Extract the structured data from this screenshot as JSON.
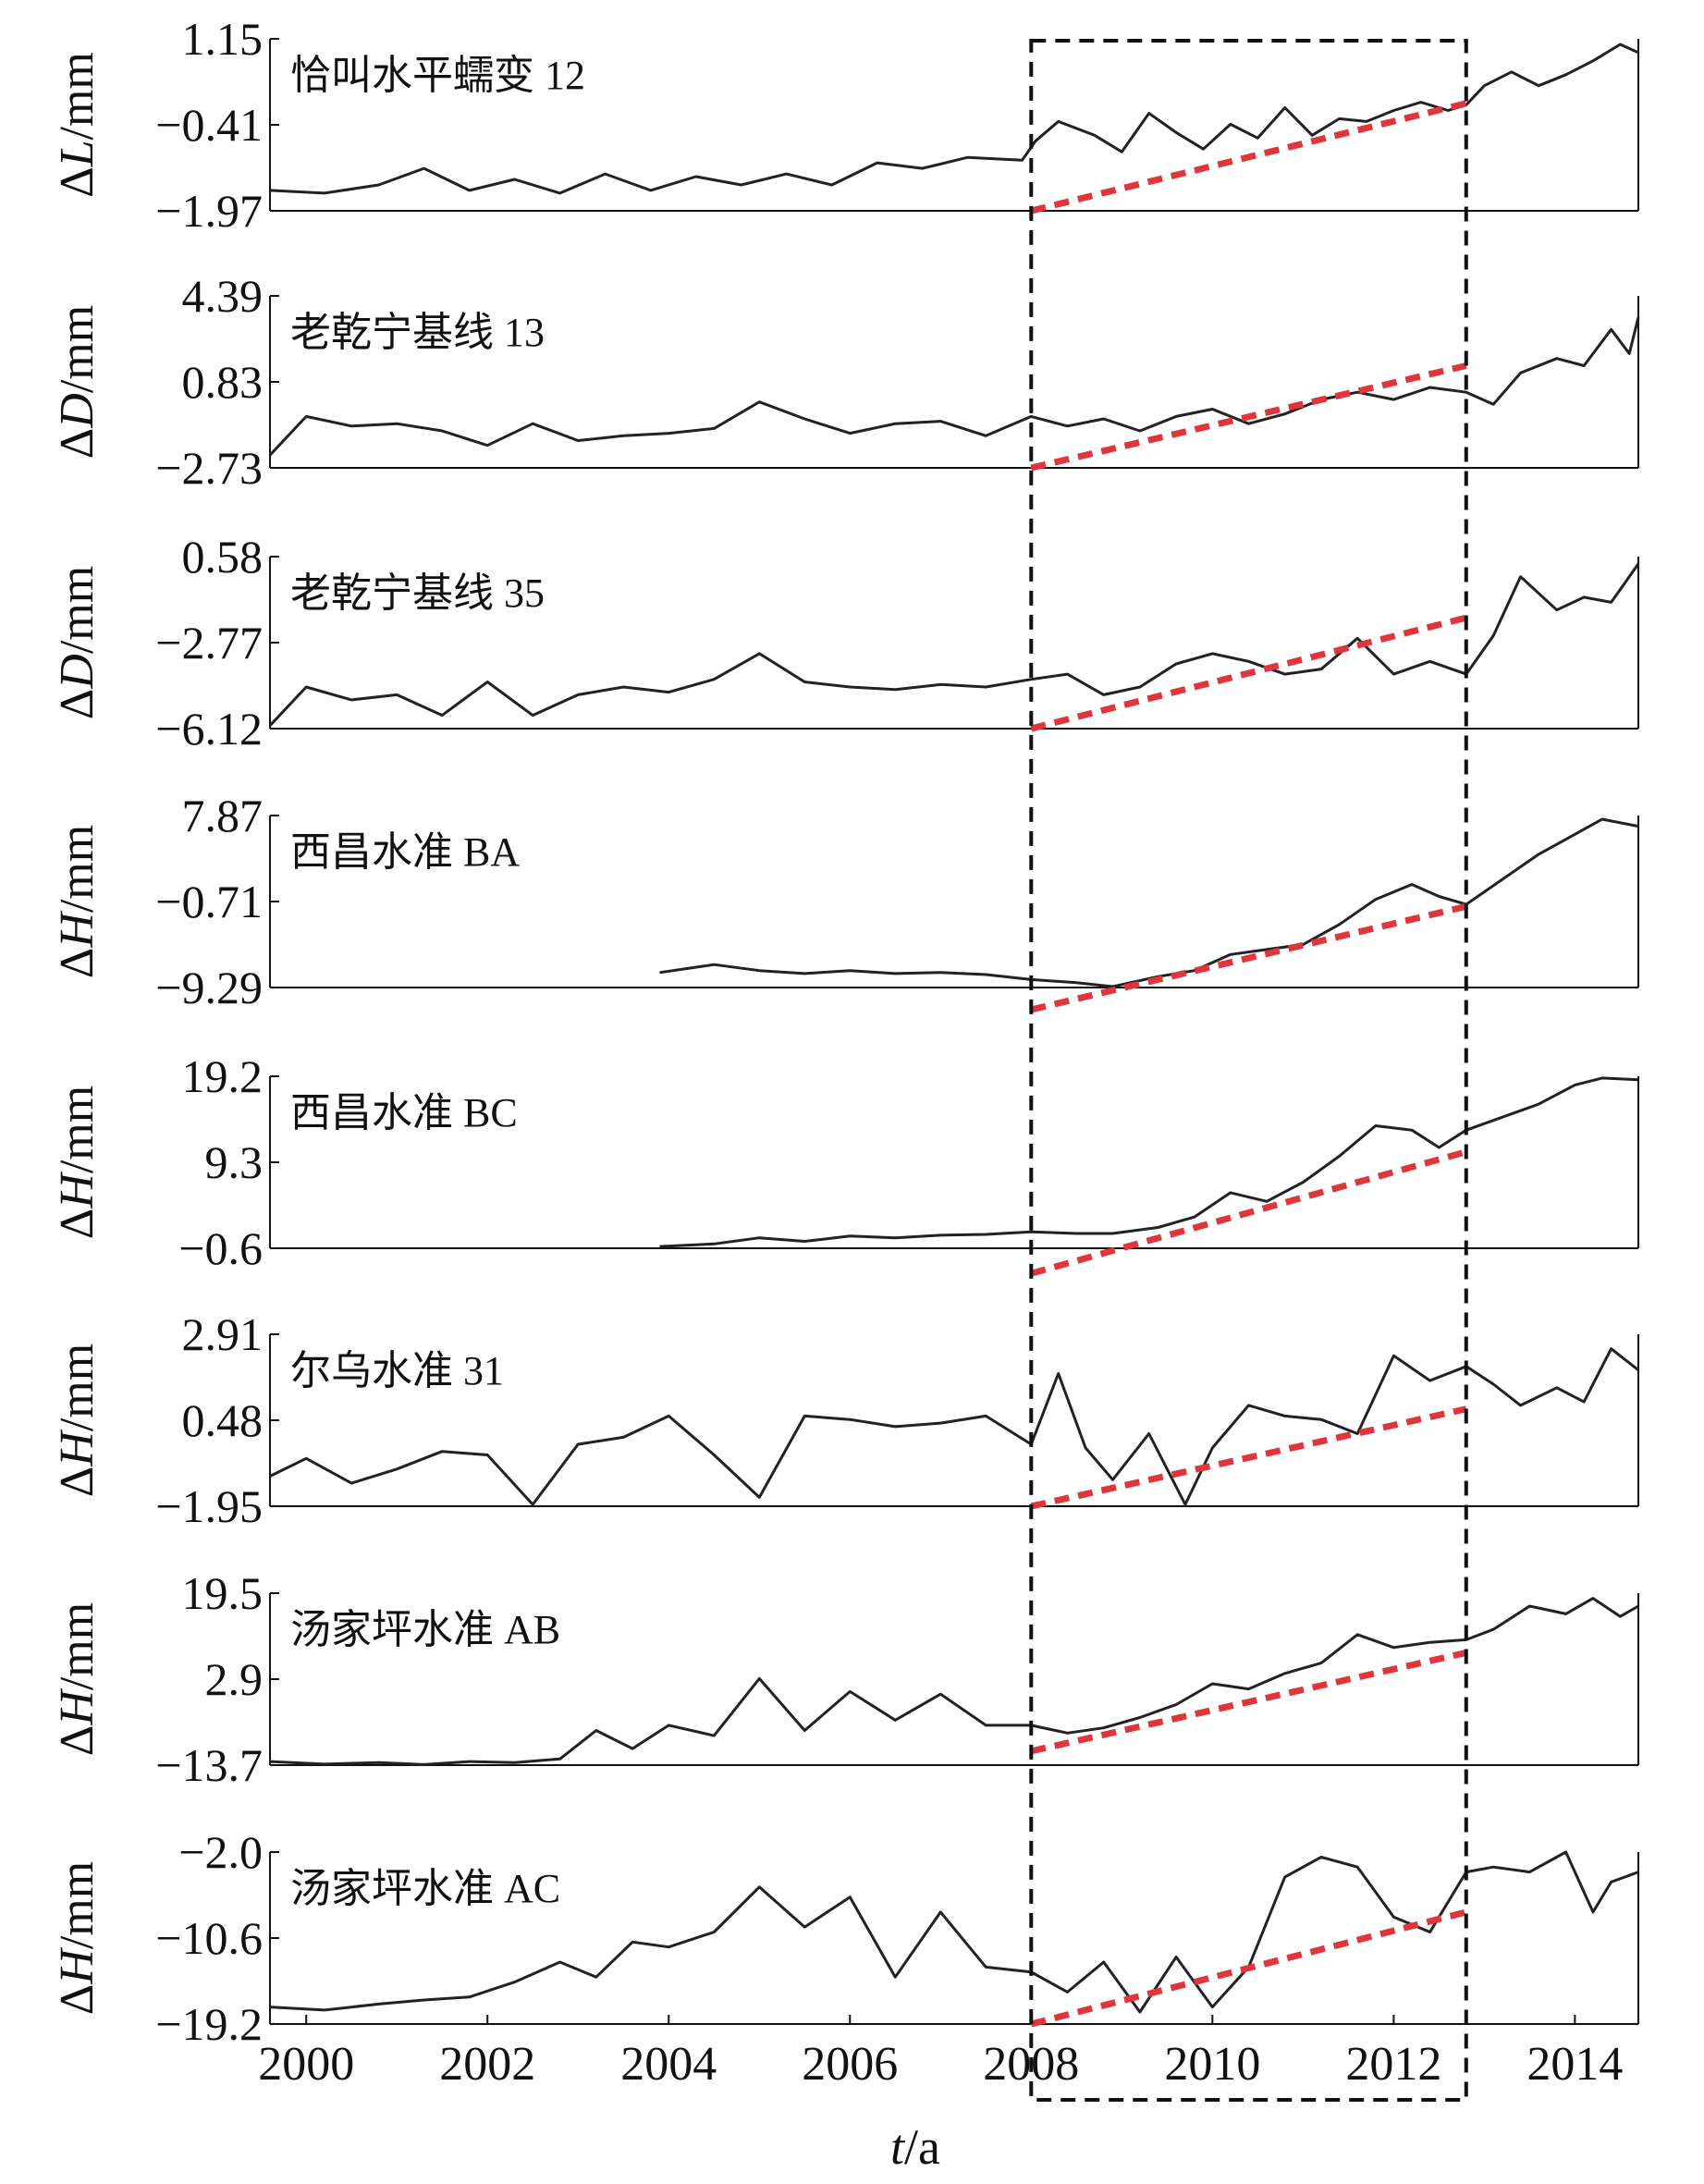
{
  "colors": {
    "series": "#222222",
    "trend": "#e0353b",
    "box": "#111111",
    "axis": "#111111"
  },
  "chart_data": [
    {
      "type": "line",
      "title": "恰叫水平蠕变 12",
      "ylabel_symbol": "Δ",
      "ylabel_var": "L",
      "ylabel_unit": "/mm",
      "yticks": [
        "1.15",
        "−0.41",
        "−1.97"
      ],
      "ylim": [
        -1.97,
        1.15
      ],
      "series": [
        {
          "name": "observed",
          "x": [
            1999.6,
            2000.2,
            2000.8,
            2001.3,
            2001.8,
            2002.3,
            2002.8,
            2003.3,
            2003.8,
            2004.3,
            2004.8,
            2005.3,
            2005.8,
            2006.3,
            2006.8,
            2007.3,
            2007.9,
            2008.05,
            2008.3,
            2008.7,
            2009.0,
            2009.3,
            2009.6,
            2009.9,
            2010.2,
            2010.5,
            2010.8,
            2011.1,
            2011.4,
            2011.7,
            2012.0,
            2012.3,
            2012.6,
            2012.8,
            2013.0,
            2013.3,
            2013.6,
            2013.9,
            2014.2,
            2014.5,
            2014.7
          ],
          "values": [
            -1.6,
            -1.65,
            -1.5,
            -1.2,
            -1.6,
            -1.4,
            -1.65,
            -1.3,
            -1.6,
            -1.35,
            -1.5,
            -1.3,
            -1.5,
            -1.1,
            -1.2,
            -1.0,
            -1.05,
            -0.7,
            -0.35,
            -0.6,
            -0.9,
            -0.2,
            -0.55,
            -0.85,
            -0.4,
            -0.65,
            -0.1,
            -0.6,
            -0.3,
            -0.35,
            -0.15,
            0.0,
            -0.15,
            -0.05,
            0.3,
            0.55,
            0.3,
            0.5,
            0.75,
            1.05,
            0.9
          ]
        }
      ],
      "trend": {
        "name": "trend",
        "x": [
          2008,
          2012.8
        ],
        "values": [
          -1.97,
          -0.02
        ]
      }
    },
    {
      "type": "line",
      "title": "老乾宁基线 13",
      "ylabel_symbol": "Δ",
      "ylabel_var": "D",
      "ylabel_unit": "/mm",
      "yticks": [
        "4.39",
        "0.83",
        "−2.73"
      ],
      "ylim": [
        -2.73,
        4.39
      ],
      "series": [
        {
          "name": "observed",
          "x": [
            1999.6,
            2000.0,
            2000.5,
            2001.0,
            2001.5,
            2002.0,
            2002.5,
            2003.0,
            2003.5,
            2004.0,
            2004.5,
            2005.0,
            2005.5,
            2006.0,
            2006.5,
            2007.0,
            2007.5,
            2008.0,
            2008.4,
            2008.8,
            2009.2,
            2009.6,
            2010.0,
            2010.4,
            2010.8,
            2011.2,
            2011.6,
            2012.0,
            2012.4,
            2012.8,
            2013.1,
            2013.4,
            2013.8,
            2014.1,
            2014.4,
            2014.6,
            2014.7
          ],
          "values": [
            -2.2,
            -0.6,
            -1.0,
            -0.9,
            -1.2,
            -1.8,
            -0.9,
            -1.6,
            -1.4,
            -1.3,
            -1.1,
            0.0,
            -0.7,
            -1.3,
            -0.9,
            -0.8,
            -1.4,
            -0.6,
            -1.0,
            -0.7,
            -1.2,
            -0.6,
            -0.3,
            -0.9,
            -0.5,
            0.1,
            0.4,
            0.1,
            0.6,
            0.4,
            -0.1,
            1.2,
            1.8,
            1.5,
            3.0,
            2.0,
            3.5
          ]
        }
      ],
      "trend": {
        "name": "trend",
        "x": [
          2008,
          2012.8
        ],
        "values": [
          -2.73,
          1.5
        ]
      }
    },
    {
      "type": "line",
      "title": "老乾宁基线 35",
      "ylabel_symbol": "Δ",
      "ylabel_var": "D",
      "ylabel_unit": "/mm",
      "yticks": [
        "0.58",
        "−2.77",
        "−6.12"
      ],
      "ylim": [
        -6.12,
        0.58
      ],
      "series": [
        {
          "name": "observed",
          "x": [
            1999.6,
            2000.0,
            2000.5,
            2001.0,
            2001.5,
            2002.0,
            2002.5,
            2003.0,
            2003.5,
            2004.0,
            2004.5,
            2005.0,
            2005.5,
            2006.0,
            2006.5,
            2007.0,
            2007.5,
            2008.0,
            2008.4,
            2008.8,
            2009.2,
            2009.6,
            2010.0,
            2010.4,
            2010.8,
            2011.2,
            2011.6,
            2012.0,
            2012.4,
            2012.8,
            2013.1,
            2013.4,
            2013.8,
            2014.1,
            2014.4,
            2014.7
          ],
          "values": [
            -6.0,
            -4.5,
            -5.0,
            -4.8,
            -5.6,
            -4.3,
            -5.6,
            -4.8,
            -4.5,
            -4.7,
            -4.2,
            -3.2,
            -4.3,
            -4.5,
            -4.6,
            -4.4,
            -4.5,
            -4.2,
            -4.0,
            -4.8,
            -4.5,
            -3.6,
            -3.2,
            -3.5,
            -4.0,
            -3.8,
            -2.6,
            -4.0,
            -3.5,
            -4.0,
            -2.5,
            -0.2,
            -1.5,
            -1.0,
            -1.2,
            0.3
          ]
        }
      ],
      "trend": {
        "name": "trend",
        "x": [
          2008,
          2012.8
        ],
        "values": [
          -6.12,
          -1.8
        ]
      }
    },
    {
      "type": "line",
      "title": "西昌水准 BA",
      "ylabel_symbol": "Δ",
      "ylabel_var": "H",
      "ylabel_unit": "/mm",
      "yticks": [
        "7.87",
        "−0.71",
        "−9.29"
      ],
      "ylim": [
        -9.29,
        7.87
      ],
      "series": [
        {
          "name": "observed",
          "x": [
            2003.9,
            2004.5,
            2005.0,
            2005.5,
            2006.0,
            2006.5,
            2007.0,
            2007.5,
            2008.0,
            2008.5,
            2008.9,
            2009.4,
            2009.8,
            2010.2,
            2010.6,
            2011.0,
            2011.4,
            2011.8,
            2012.2,
            2012.5,
            2012.8,
            2013.2,
            2013.6,
            2014.0,
            2014.3,
            2014.7
          ],
          "values": [
            -7.8,
            -7.0,
            -7.6,
            -7.9,
            -7.6,
            -7.9,
            -7.8,
            -8.0,
            -8.5,
            -8.8,
            -9.2,
            -8.2,
            -7.6,
            -6.0,
            -5.5,
            -5.0,
            -3.0,
            -0.5,
            1.0,
            -0.2,
            -1.0,
            1.5,
            4.0,
            6.0,
            7.5,
            6.8
          ]
        }
      ],
      "trend": {
        "name": "trend",
        "x": [
          2008,
          2012.8
        ],
        "values": [
          -11.5,
          -1.2
        ]
      }
    },
    {
      "type": "line",
      "title": "西昌水准 BC",
      "ylabel_symbol": "Δ",
      "ylabel_var": "H",
      "ylabel_unit": "/mm",
      "yticks": [
        "19.2",
        "9.3",
        "−0.6"
      ],
      "ylim": [
        -0.6,
        19.2
      ],
      "series": [
        {
          "name": "observed",
          "x": [
            2003.9,
            2004.5,
            2005.0,
            2005.5,
            2006.0,
            2006.5,
            2007.0,
            2007.5,
            2008.0,
            2008.5,
            2008.9,
            2009.4,
            2009.8,
            2010.2,
            2010.6,
            2011.0,
            2011.4,
            2011.8,
            2012.2,
            2012.5,
            2012.8,
            2013.2,
            2013.6,
            2014.0,
            2014.3,
            2014.7
          ],
          "values": [
            -0.4,
            -0.1,
            0.6,
            0.2,
            0.8,
            0.6,
            0.9,
            1.0,
            1.3,
            1.1,
            1.1,
            1.8,
            3.0,
            5.8,
            4.8,
            7.0,
            10.0,
            13.5,
            13.0,
            11.0,
            13.0,
            14.5,
            16.0,
            18.2,
            19.0,
            18.8
          ]
        }
      ],
      "trend": {
        "name": "trend",
        "x": [
          2008,
          2012.8
        ],
        "values": [
          -3.5,
          10.5
        ]
      }
    },
    {
      "type": "line",
      "title": "尔乌水准 31",
      "ylabel_symbol": "Δ",
      "ylabel_var": "H",
      "ylabel_unit": "/mm",
      "yticks": [
        "2.91",
        "0.48",
        "−1.95"
      ],
      "ylim": [
        -1.95,
        2.91
      ],
      "series": [
        {
          "name": "observed",
          "x": [
            1999.6,
            2000.0,
            2000.5,
            2001.0,
            2001.5,
            2002.0,
            2002.5,
            2003.0,
            2003.5,
            2004.0,
            2004.5,
            2005.0,
            2005.5,
            2006.0,
            2006.5,
            2007.0,
            2007.5,
            2008.0,
            2008.3,
            2008.6,
            2008.9,
            2009.3,
            2009.7,
            2010.0,
            2010.4,
            2010.8,
            2011.2,
            2011.6,
            2012.0,
            2012.4,
            2012.8,
            2013.1,
            2013.4,
            2013.8,
            2014.1,
            2014.4,
            2014.7
          ],
          "values": [
            -1.1,
            -0.6,
            -1.3,
            -0.9,
            -0.4,
            -0.5,
            -1.9,
            -0.2,
            0.0,
            0.6,
            -0.5,
            -1.7,
            0.6,
            0.5,
            0.3,
            0.4,
            0.6,
            -0.2,
            1.8,
            -0.3,
            -1.2,
            0.1,
            -1.9,
            -0.3,
            0.9,
            0.6,
            0.5,
            0.1,
            2.3,
            1.6,
            2.0,
            1.5,
            0.9,
            1.4,
            1.0,
            2.5,
            1.9
          ]
        }
      ],
      "trend": {
        "name": "trend",
        "x": [
          2008,
          2012.8
        ],
        "values": [
          -1.95,
          0.8
        ]
      }
    },
    {
      "type": "line",
      "title": "汤家坪水准 AB",
      "ylabel_symbol": "Δ",
      "ylabel_var": "H",
      "ylabel_unit": "/mm",
      "yticks": [
        "19.5",
        "2.9",
        "−13.7"
      ],
      "ylim": [
        -13.7,
        19.5
      ],
      "series": [
        {
          "name": "observed",
          "x": [
            1999.6,
            2000.2,
            2000.8,
            2001.3,
            2001.8,
            2002.3,
            2002.8,
            2003.2,
            2003.6,
            2004.0,
            2004.5,
            2005.0,
            2005.5,
            2006.0,
            2006.5,
            2007.0,
            2007.5,
            2008.0,
            2008.4,
            2008.8,
            2009.2,
            2009.6,
            2010.0,
            2010.4,
            2010.8,
            2011.2,
            2011.6,
            2012.0,
            2012.4,
            2012.8,
            2013.1,
            2013.5,
            2013.9,
            2014.2,
            2014.5,
            2014.7
          ],
          "values": [
            -13.0,
            -13.5,
            -13.2,
            -13.6,
            -13.0,
            -13.2,
            -12.5,
            -7.0,
            -10.5,
            -6.0,
            -8.0,
            3.0,
            -7.0,
            0.5,
            -5.0,
            0.0,
            -6.0,
            -6.0,
            -7.5,
            -6.5,
            -4.5,
            -2.0,
            2.0,
            1.0,
            4.0,
            6.0,
            11.5,
            9.0,
            10.0,
            10.5,
            12.5,
            17.0,
            15.5,
            18.5,
            15.0,
            17.0
          ]
        }
      ],
      "trend": {
        "name": "trend",
        "x": [
          2008,
          2012.8
        ],
        "values": [
          -11.0,
          8.0
        ]
      }
    },
    {
      "type": "line",
      "title": "汤家坪水准 AC",
      "ylabel_symbol": "Δ",
      "ylabel_var": "H",
      "ylabel_unit": "/mm",
      "yticks": [
        "−2.0",
        "−10.6",
        "−19.2"
      ],
      "ylim": [
        -19.2,
        -2.0
      ],
      "series": [
        {
          "name": "observed",
          "x": [
            1999.6,
            2000.2,
            2000.8,
            2001.3,
            2001.8,
            2002.3,
            2002.8,
            2003.2,
            2003.6,
            2004.0,
            2004.5,
            2005.0,
            2005.5,
            2006.0,
            2006.5,
            2007.0,
            2007.5,
            2008.0,
            2008.4,
            2008.8,
            2009.2,
            2009.6,
            2010.0,
            2010.4,
            2010.8,
            2011.2,
            2011.6,
            2012.0,
            2012.4,
            2012.8,
            2013.1,
            2013.5,
            2013.9,
            2014.2,
            2014.4,
            2014.7
          ],
          "values": [
            -17.5,
            -17.8,
            -17.2,
            -16.8,
            -16.5,
            -15.0,
            -13.0,
            -14.5,
            -11.0,
            -11.5,
            -10.0,
            -5.5,
            -9.5,
            -6.5,
            -14.5,
            -8.0,
            -13.5,
            -14.0,
            -16.0,
            -13.0,
            -18.0,
            -12.5,
            -17.5,
            -13.5,
            -4.5,
            -2.5,
            -3.5,
            -8.5,
            -10.0,
            -4.0,
            -3.5,
            -4.0,
            -2.0,
            -8.0,
            -5.0,
            -4.0
          ]
        }
      ],
      "trend": {
        "name": "trend",
        "x": [
          2008,
          2012.8
        ],
        "values": [
          -19.2,
          -8.0
        ]
      }
    }
  ],
  "x_axis": {
    "xlim": [
      1999.6,
      2014.7
    ],
    "tick_values": [
      2000,
      2002,
      2004,
      2006,
      2008,
      2010,
      2012,
      2014
    ],
    "tick_labels": [
      "2000",
      "2002",
      "2004",
      "2006",
      "2008",
      "2010",
      "2012",
      "2014"
    ],
    "xlabel_var": "t",
    "xlabel_unit": "/a"
  },
  "highlight_box": {
    "x_start": 2008,
    "x_end": 2012.8
  }
}
